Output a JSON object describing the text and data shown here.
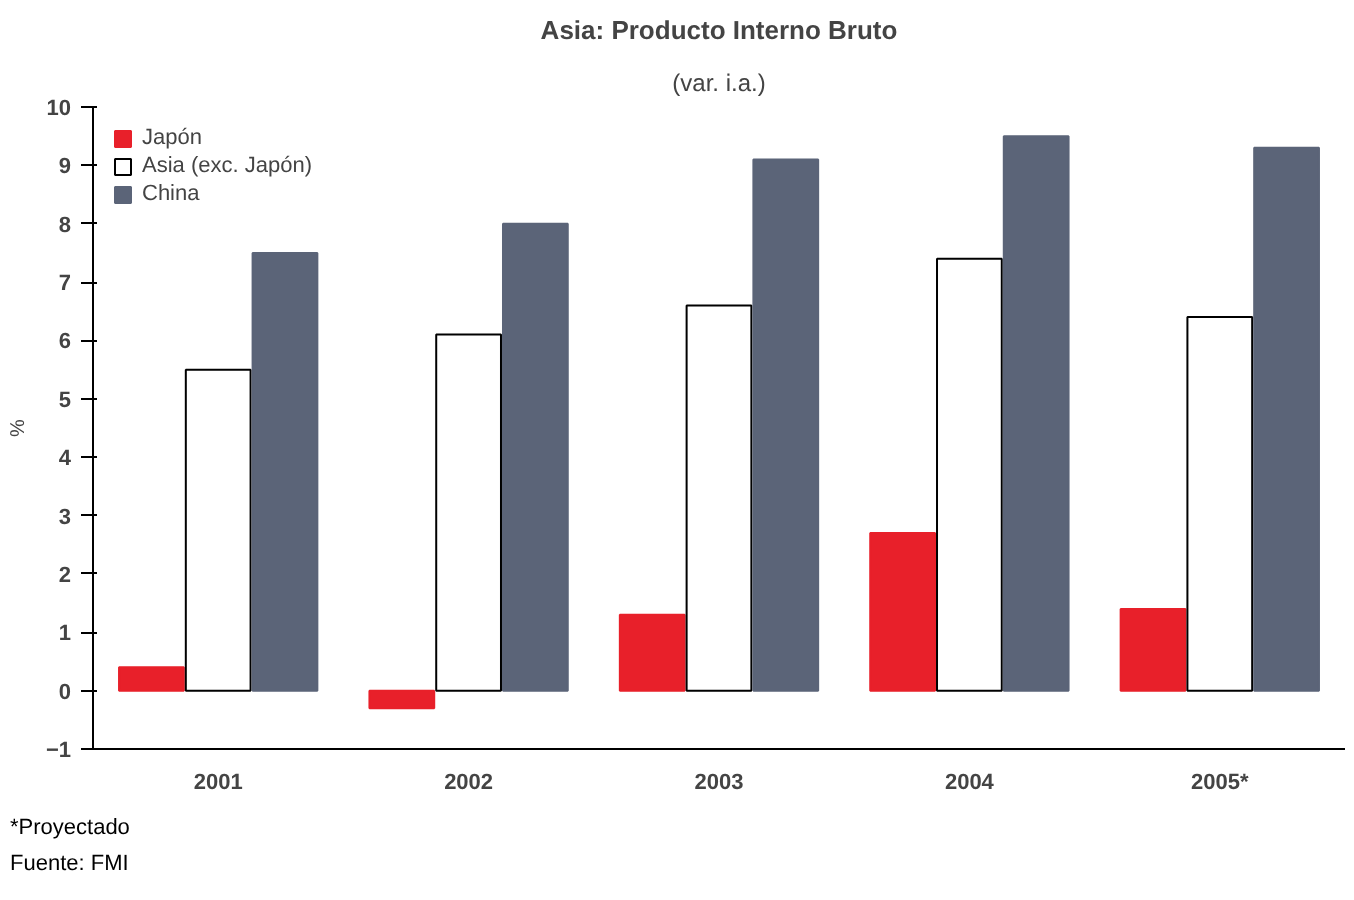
{
  "chart_data": {
    "type": "bar",
    "title": "Asia: Producto Interno Bruto",
    "subtitle": "(var. i.a.)",
    "ylabel": "%",
    "categories": [
      "2001",
      "2002",
      "2003",
      "2004",
      "2005*"
    ],
    "series": [
      {
        "name": "Japón",
        "color": "#e8202a",
        "values": [
          0.4,
          -0.3,
          1.3,
          2.7,
          1.4
        ]
      },
      {
        "name": "Asia (exc. Japón)",
        "color": "#ffffff",
        "values": [
          5.5,
          6.1,
          6.6,
          7.4,
          6.4
        ]
      },
      {
        "name": "China",
        "color": "#5b6478",
        "values": [
          7.5,
          8.0,
          9.1,
          9.5,
          9.3
        ]
      }
    ],
    "ylim": [
      -1,
      10
    ],
    "yticks": [
      -1,
      0,
      1,
      2,
      3,
      4,
      5,
      6,
      7,
      8,
      9,
      10
    ],
    "grid": false,
    "legend": "top left",
    "annotations": [
      "*Proyectado",
      "Fuente: FMI"
    ]
  }
}
